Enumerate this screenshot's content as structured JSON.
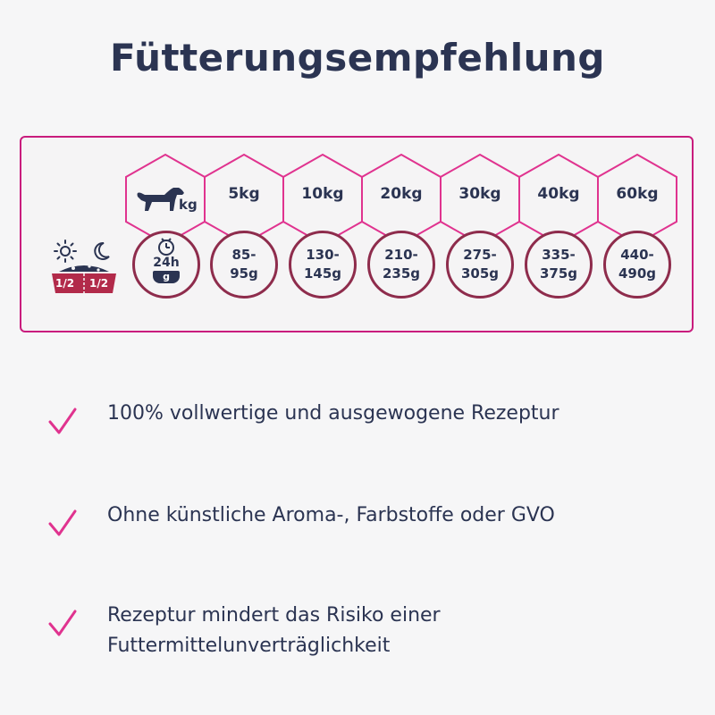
{
  "title": "Fütterungsempfehlung",
  "table": {
    "header_unit": "kg",
    "time_label": "24h",
    "gram_label": "g",
    "split_left": "1/2",
    "split_right": "1/2",
    "columns": [
      {
        "weight": "5kg",
        "amount_top": "85-",
        "amount_bottom": "95g"
      },
      {
        "weight": "10kg",
        "amount_top": "130-",
        "amount_bottom": "145g"
      },
      {
        "weight": "20kg",
        "amount_top": "210-",
        "amount_bottom": "235g"
      },
      {
        "weight": "30kg",
        "amount_top": "275-",
        "amount_bottom": "305g"
      },
      {
        "weight": "40kg",
        "amount_top": "335-",
        "amount_bottom": "375g"
      },
      {
        "weight": "60kg",
        "amount_top": "440-",
        "amount_bottom": "490g"
      }
    ]
  },
  "bullets": [
    {
      "text": "100% vollwertige und ausgewogene Rezeptur"
    },
    {
      "text": "Ohne künstliche Aroma-, Farbstoffe oder GVO"
    },
    {
      "text": "Rezeptur mindert das Risiko einer Futtermittelunverträglichkeit"
    }
  ],
  "colors": {
    "accent": "#e0338f",
    "border": "#c91c7d",
    "circle": "#8e2c4c",
    "text": "#2b3452",
    "bowl": "#b22a4a"
  },
  "icons": [
    "sun-icon",
    "moon-icon",
    "dog-icon",
    "clock-icon",
    "bowl-icon",
    "check-icon"
  ]
}
